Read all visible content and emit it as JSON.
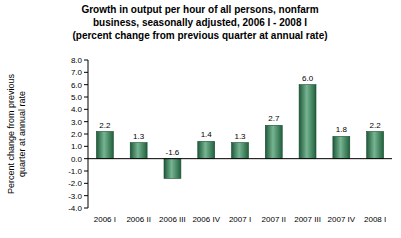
{
  "chart_data": {
    "type": "bar",
    "title": "Growth in output per hour of all persons, nonfarm\nbusiness, seasonally adjusted, 2006 I - 2008 I\n(percent change from previous quarter at annual rate)",
    "y_label": "Percent change from previous\nquarter at annual rate",
    "categories": [
      "2006 I",
      "2006 II",
      "2006 III",
      "2006 IV",
      "2007 I",
      "2007 II",
      "2007 III",
      "2007 IV",
      "2008 I"
    ],
    "values": [
      2.2,
      1.3,
      -1.6,
      1.4,
      1.3,
      2.7,
      6.0,
      1.8,
      2.2
    ],
    "value_labels": [
      "2.2",
      "1.3",
      "-1.6",
      "1.4",
      "1.3",
      "2.7",
      "6.0",
      "1.8",
      "2.2"
    ],
    "data_labels": true,
    "color": "#2e8b57",
    "grid": false,
    "ylim": [
      -4,
      8
    ],
    "yticks": [
      {
        "value": -4,
        "label": "-4.0"
      },
      {
        "value": -3,
        "label": "-3.0"
      },
      {
        "value": -2,
        "label": "-2.0"
      },
      {
        "value": -1,
        "label": "-1.0"
      },
      {
        "value": 0,
        "label": "0.0"
      },
      {
        "value": 1,
        "label": "1.0"
      },
      {
        "value": 2,
        "label": "2.0"
      },
      {
        "value": 3,
        "label": "3.0"
      },
      {
        "value": 4,
        "label": "4.0"
      },
      {
        "value": 5,
        "label": "5.0"
      },
      {
        "value": 6,
        "label": "6.0"
      },
      {
        "value": 7,
        "label": "7.0"
      },
      {
        "value": 8,
        "label": "8.0"
      }
    ]
  }
}
